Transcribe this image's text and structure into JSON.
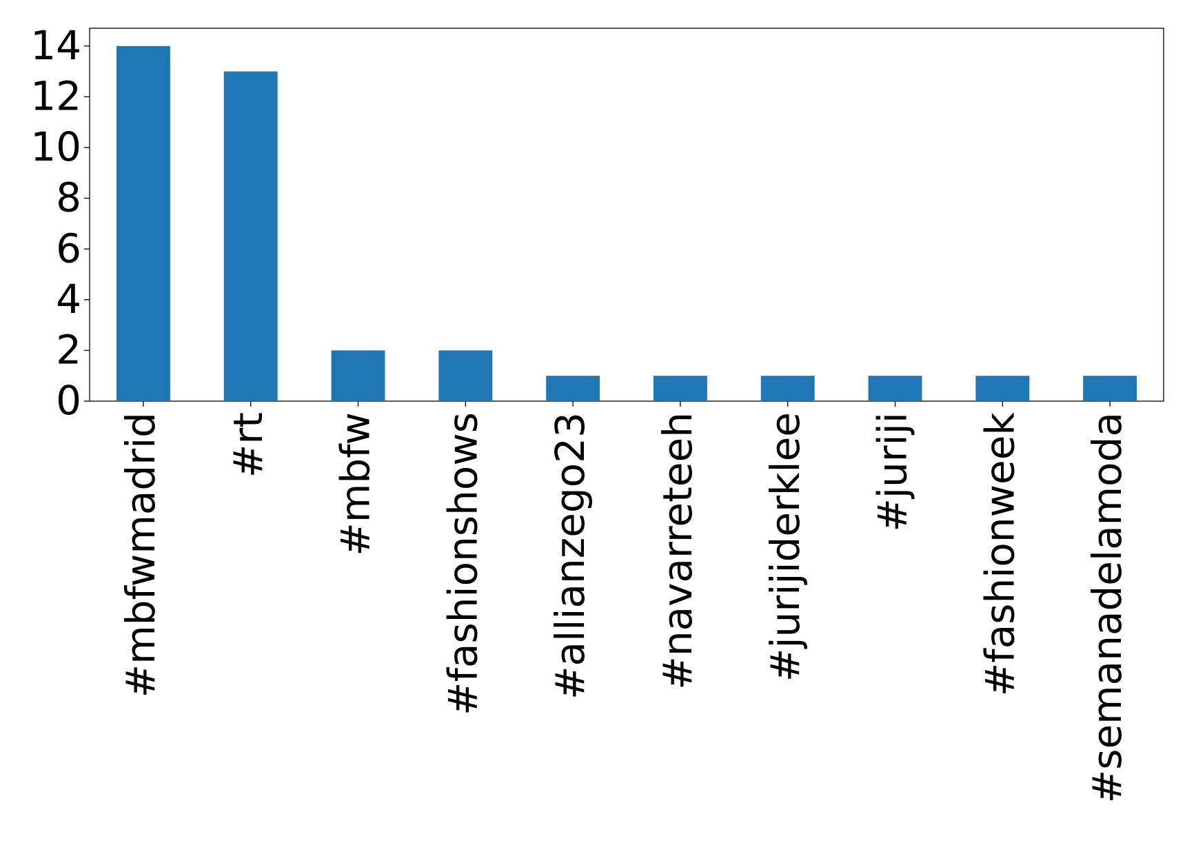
{
  "chart_data": {
    "type": "bar",
    "categories": [
      "#mbfwmadrid",
      "#rt",
      "#mbfw",
      "#fashionshows",
      "#allianzego23",
      "#navarreteeh",
      "#jurijiderklee",
      "#juriji",
      "#fashionweek",
      "#semanadelamoda"
    ],
    "values": [
      14,
      13,
      2,
      2,
      1,
      1,
      1,
      1,
      1,
      1
    ],
    "color": "#1f77b4",
    "ylim": [
      0,
      14.7
    ],
    "yticks": [
      0,
      2,
      4,
      6,
      8,
      10,
      12,
      14
    ],
    "grid": false
  }
}
